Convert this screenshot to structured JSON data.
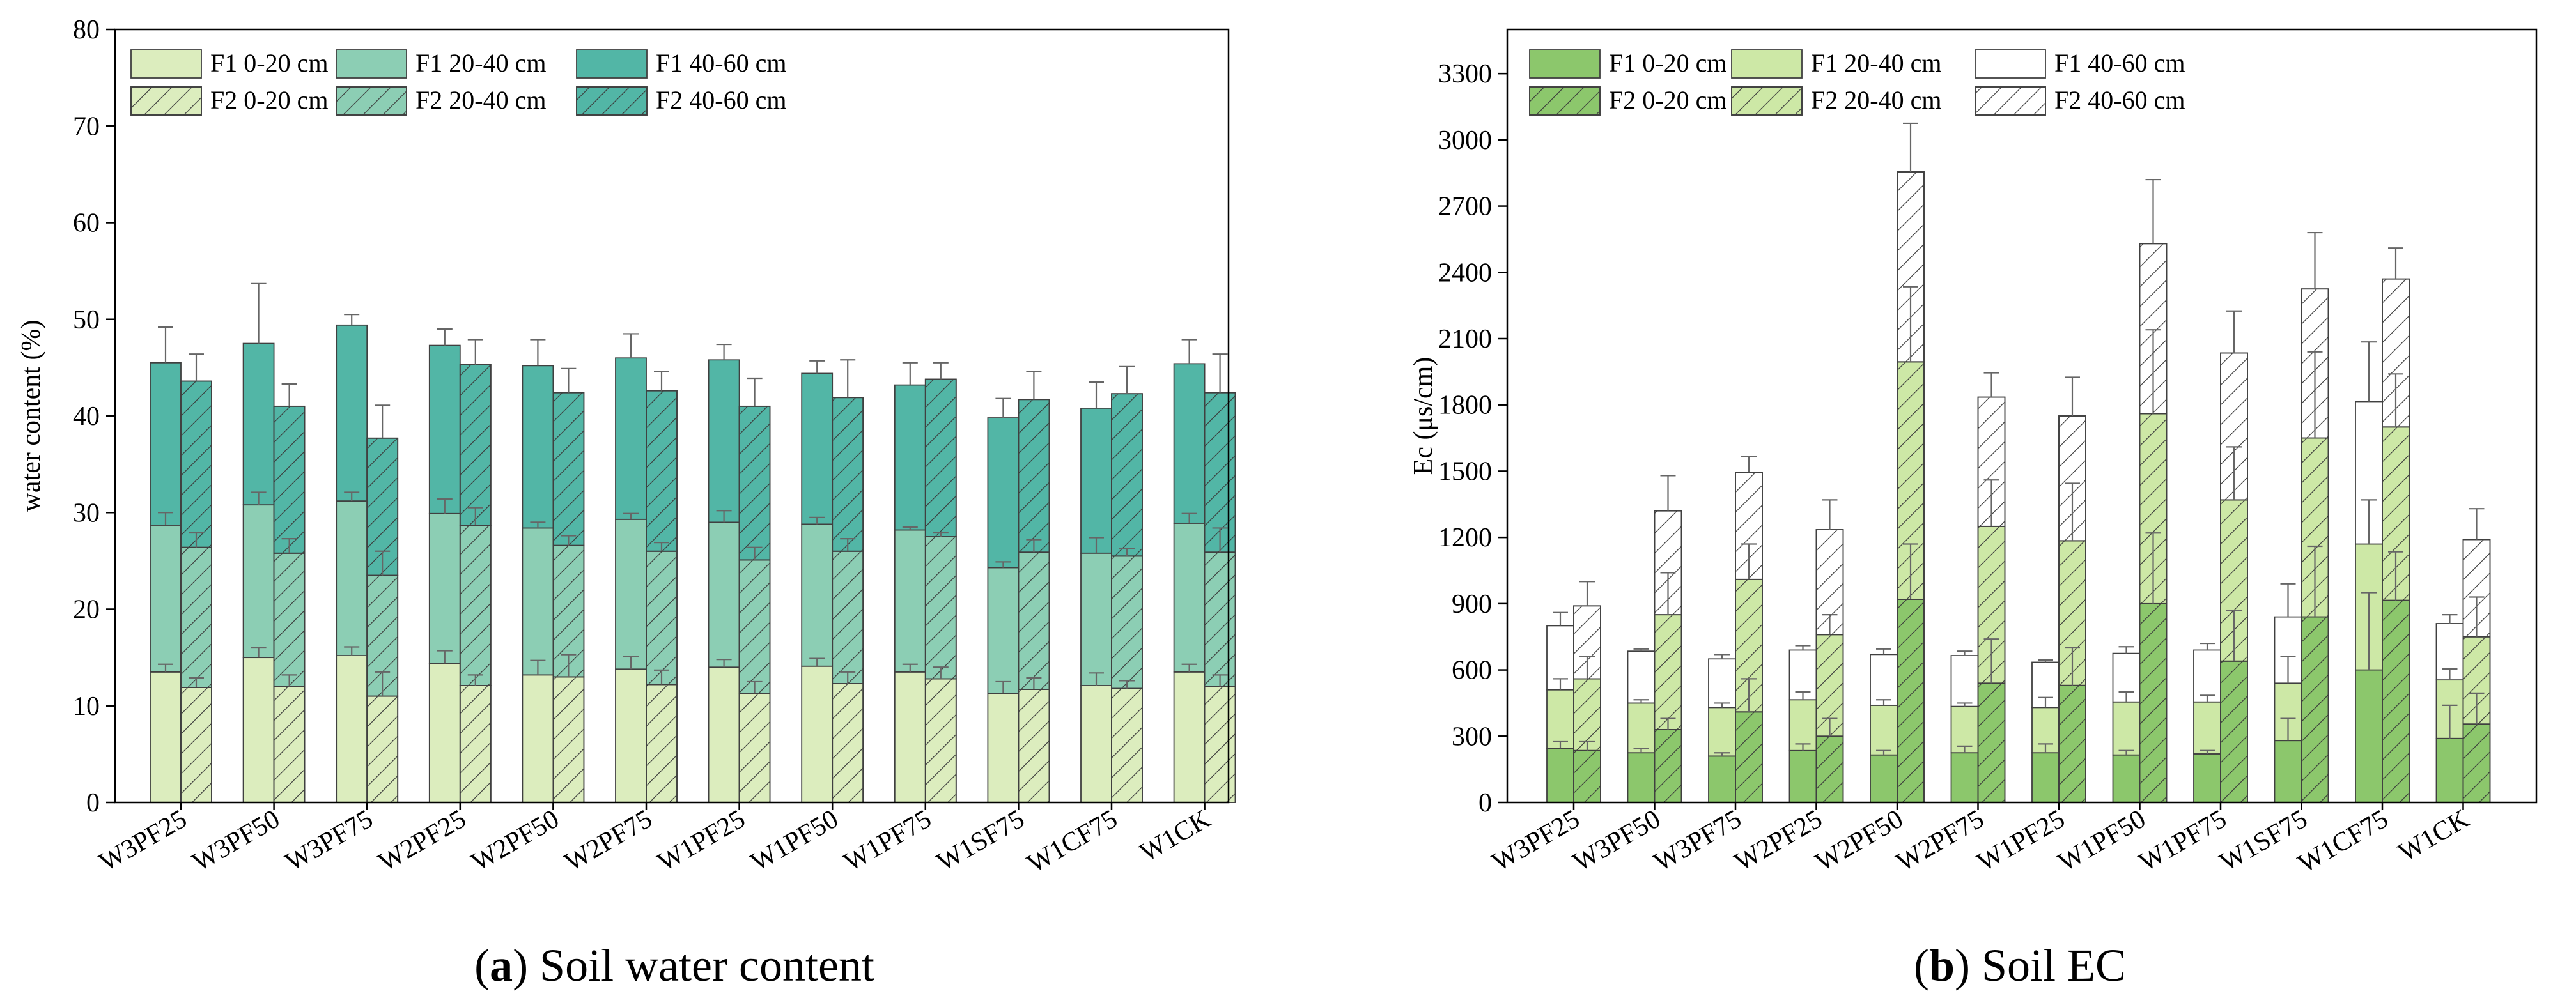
{
  "colors": {
    "f1_0_20_a": "#dcedbe",
    "f1_20_40_a": "#8cceb4",
    "f1_40_60_a": "#52b6a6",
    "f1_0_20_b": "#8cc76c",
    "f1_20_40_b": "#cde8a6",
    "f1_40_60_b": "#ffffff",
    "hatch": "#3a3a3a",
    "error": "#666666"
  },
  "chart_data": [
    {
      "type": "bar",
      "subtype": "stacked-grouped",
      "panel_letter": "a",
      "caption": "Soil water content",
      "ylabel": "water content (%)",
      "xlabel": "",
      "ylim": [
        0,
        80
      ],
      "yticks": [
        0,
        10,
        20,
        30,
        40,
        50,
        60,
        70,
        80
      ],
      "categories": [
        "W3PF25",
        "W3PF50",
        "W3PF75",
        "W2PF25",
        "W2PF50",
        "W2PF75",
        "W1PF25",
        "W1PF50",
        "W1PF75",
        "W1SF75",
        "W1CF75",
        "W1CK"
      ],
      "legend": {
        "position": "top-left",
        "entries": [
          "F1 0-20 cm",
          "F1 20-40 cm",
          "F1 40-60 cm",
          "F2 0-20 cm",
          "F2 20-40 cm",
          "F2 40-60 cm"
        ]
      },
      "series": [
        {
          "name": "F1 0-20 cm",
          "group": "F1",
          "layer": 0,
          "values": [
            13.5,
            15.0,
            15.2,
            14.4,
            13.2,
            13.8,
            14.0,
            14.1,
            13.5,
            11.3,
            12.1,
            13.5
          ],
          "errors": [
            0.8,
            1.0,
            0.9,
            1.3,
            1.5,
            1.3,
            0.8,
            0.8,
            0.8,
            1.2,
            1.3,
            0.8
          ]
        },
        {
          "name": "F1 20-40 cm",
          "group": "F1",
          "layer": 1,
          "values": [
            15.2,
            15.8,
            16.0,
            15.5,
            15.2,
            15.5,
            15.0,
            14.7,
            14.7,
            13.0,
            13.7,
            15.4
          ],
          "errors": [
            1.3,
            1.3,
            0.9,
            1.5,
            0.6,
            0.6,
            1.2,
            0.7,
            0.3,
            0.6,
            1.6,
            1.0
          ]
        },
        {
          "name": "F1 40-60 cm",
          "group": "F1",
          "layer": 2,
          "values": [
            16.8,
            16.7,
            18.2,
            17.4,
            16.8,
            16.7,
            16.8,
            15.6,
            15.0,
            15.5,
            15.0,
            16.5
          ],
          "errors": [
            3.7,
            6.2,
            1.1,
            1.7,
            2.7,
            2.5,
            1.6,
            1.3,
            2.3,
            2.0,
            2.7,
            2.5
          ]
        },
        {
          "name": "F2 0-20 cm",
          "group": "F2",
          "layer": 0,
          "values": [
            11.9,
            12.0,
            11.0,
            12.1,
            13.0,
            12.2,
            11.3,
            12.3,
            12.8,
            11.7,
            11.8,
            12.0
          ],
          "errors": [
            1.0,
            1.2,
            2.5,
            1.1,
            2.3,
            1.5,
            1.2,
            1.2,
            1.2,
            1.2,
            0.8,
            1.2
          ]
        },
        {
          "name": "F2 20-40 cm",
          "group": "F2",
          "layer": 1,
          "values": [
            14.5,
            13.8,
            12.5,
            16.6,
            13.6,
            13.8,
            13.8,
            13.7,
            14.7,
            14.2,
            13.7,
            13.9
          ],
          "errors": [
            1.5,
            1.5,
            2.5,
            1.8,
            1.0,
            0.9,
            1.3,
            1.3,
            0.4,
            1.3,
            0.8,
            2.5
          ]
        },
        {
          "name": "F2 40-60 cm",
          "group": "F2",
          "layer": 2,
          "values": [
            17.2,
            15.2,
            14.2,
            16.6,
            15.8,
            16.6,
            15.9,
            15.9,
            16.3,
            15.8,
            16.8,
            16.5
          ],
          "errors": [
            2.8,
            2.3,
            3.4,
            2.6,
            2.5,
            2.0,
            2.9,
            3.9,
            1.7,
            2.9,
            2.8,
            4.0
          ]
        }
      ]
    },
    {
      "type": "bar",
      "subtype": "stacked-grouped",
      "panel_letter": "b",
      "caption": "Soil EC",
      "ylabel": "Ec (μs/cm)",
      "xlabel": "",
      "ylim": [
        0,
        3500
      ],
      "yticks": [
        0,
        300,
        600,
        900,
        1200,
        1500,
        1800,
        2100,
        2400,
        2700,
        3000,
        3300
      ],
      "categories": [
        "W3PF25",
        "W3PF50",
        "W3PF75",
        "W2PF25",
        "W2PF50",
        "W2PF75",
        "W1PF25",
        "W1PF50",
        "W1PF75",
        "W1SF75",
        "W1CF75",
        "W1CK"
      ],
      "legend": {
        "position": "top-left",
        "entries": [
          "F1 0-20 cm",
          "F1 20-40 cm",
          "F1 40-60 cm",
          "F2 0-20 cm",
          "F2 20-40 cm",
          "F2 40-60 cm"
        ]
      },
      "series": [
        {
          "name": "F1 0-20 cm",
          "group": "F1",
          "layer": 0,
          "values": [
            245,
            225,
            210,
            235,
            215,
            225,
            225,
            215,
            220,
            280,
            600,
            290
          ],
          "errors": [
            30,
            20,
            15,
            30,
            20,
            30,
            40,
            20,
            15,
            100,
            350,
            150
          ]
        },
        {
          "name": "F1 20-40 cm",
          "group": "F1",
          "layer": 1,
          "values": [
            265,
            225,
            220,
            230,
            225,
            210,
            205,
            240,
            235,
            260,
            570,
            265
          ],
          "errors": [
            50,
            15,
            20,
            35,
            25,
            15,
            45,
            45,
            30,
            120,
            200,
            50
          ]
        },
        {
          "name": "F1 40-60 cm",
          "group": "F1",
          "layer": 2,
          "values": [
            290,
            235,
            220,
            225,
            230,
            230,
            205,
            220,
            235,
            300,
            645,
            255
          ],
          "errors": [
            60,
            10,
            20,
            20,
            25,
            20,
            10,
            30,
            30,
            150,
            270,
            40
          ]
        },
        {
          "name": "F2 0-20 cm",
          "group": "F2",
          "layer": 0,
          "values": [
            235,
            330,
            410,
            300,
            920,
            540,
            530,
            900,
            640,
            840,
            915,
            355
          ],
          "errors": [
            40,
            50,
            150,
            80,
            250,
            200,
            170,
            320,
            230,
            320,
            220,
            140
          ]
        },
        {
          "name": "F2 20-40 cm",
          "group": "F2",
          "layer": 1,
          "values": [
            325,
            520,
            600,
            460,
            1075,
            710,
            655,
            860,
            730,
            810,
            785,
            395
          ],
          "errors": [
            100,
            190,
            160,
            90,
            340,
            210,
            260,
            380,
            240,
            390,
            240,
            180
          ]
        },
        {
          "name": "F2 40-60 cm",
          "group": "F2",
          "layer": 2,
          "values": [
            330,
            470,
            485,
            475,
            860,
            585,
            565,
            770,
            665,
            675,
            670,
            440
          ],
          "errors": [
            110,
            160,
            70,
            135,
            220,
            110,
            175,
            290,
            190,
            255,
            140,
            140
          ]
        }
      ]
    }
  ]
}
